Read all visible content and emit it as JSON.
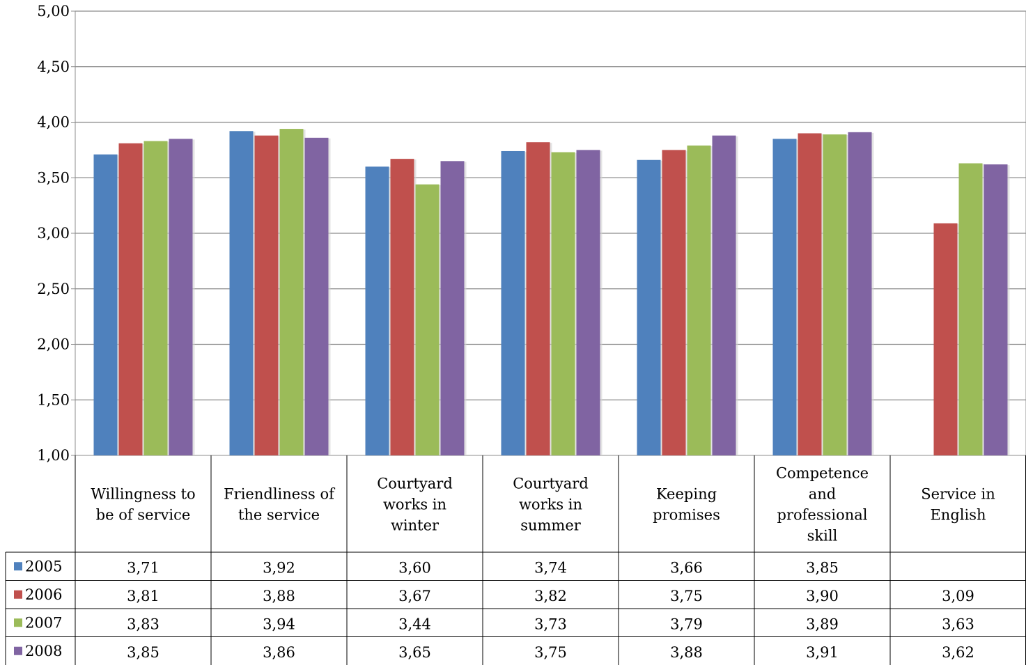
{
  "chart_data": {
    "type": "bar",
    "title": "",
    "xlabel": "",
    "ylabel": "",
    "ylim": [
      1.0,
      5.0
    ],
    "yticks": [
      "1,00",
      "1,50",
      "2,00",
      "2,50",
      "3,00",
      "3,50",
      "4,00",
      "4,50",
      "5,00"
    ],
    "ytick_values": [
      1.0,
      1.5,
      2.0,
      2.5,
      3.0,
      3.5,
      4.0,
      4.5,
      5.0
    ],
    "grid": true,
    "legend_position": "data table, left",
    "categories": [
      "Willingness to be of service",
      "Friendliness of the service",
      "Courtyard works in winter",
      "Courtyard works in summer",
      "Keeping promises",
      "Competence and professional skill",
      "Service in English"
    ],
    "category_lines": [
      [
        "Willingness to",
        "be of service"
      ],
      [
        "Friendliness of",
        "the service"
      ],
      [
        "Courtyard",
        "works in",
        "winter"
      ],
      [
        "Courtyard",
        "works in",
        "summer"
      ],
      [
        "Keeping",
        "promises"
      ],
      [
        "Competence",
        "and",
        "professional",
        "skill"
      ],
      [
        "Service in",
        "English"
      ]
    ],
    "series": [
      {
        "name": "2005",
        "color": "#4F81BD",
        "values": [
          3.71,
          3.92,
          3.6,
          3.74,
          3.66,
          3.85,
          null
        ],
        "labels": [
          "3,71",
          "3,92",
          "3,60",
          "3,74",
          "3,66",
          "3,85",
          ""
        ]
      },
      {
        "name": "2006",
        "color": "#C0504D",
        "values": [
          3.81,
          3.88,
          3.67,
          3.82,
          3.75,
          3.9,
          3.09
        ],
        "labels": [
          "3,81",
          "3,88",
          "3,67",
          "3,82",
          "3,75",
          "3,90",
          "3,09"
        ]
      },
      {
        "name": "2007",
        "color": "#9BBB59",
        "values": [
          3.83,
          3.94,
          3.44,
          3.73,
          3.79,
          3.89,
          3.63
        ],
        "labels": [
          "3,83",
          "3,94",
          "3,44",
          "3,73",
          "3,79",
          "3,89",
          "3,63"
        ]
      },
      {
        "name": "2008",
        "color": "#8064A2",
        "values": [
          3.85,
          3.86,
          3.65,
          3.75,
          3.88,
          3.91,
          3.62
        ],
        "labels": [
          "3,85",
          "3,86",
          "3,65",
          "3,75",
          "3,88",
          "3,91",
          "3,62"
        ]
      }
    ]
  }
}
